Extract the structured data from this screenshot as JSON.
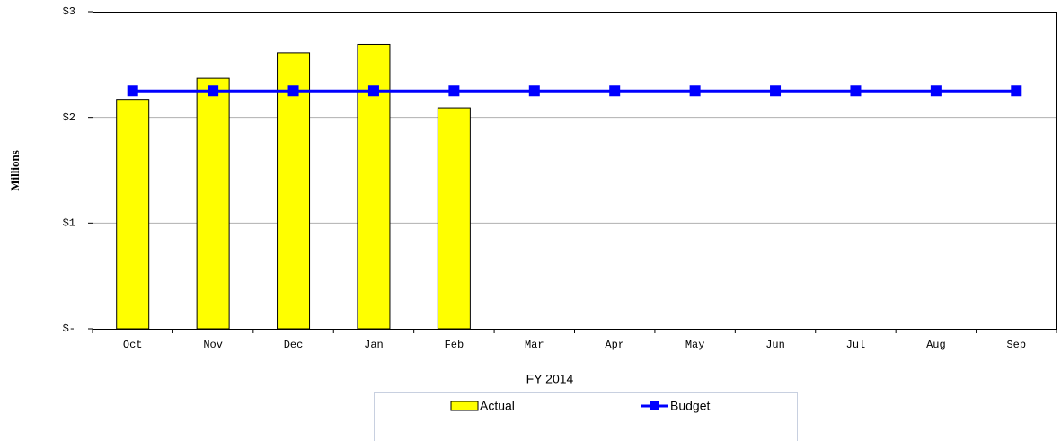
{
  "chart_data": {
    "type": "bar_line",
    "y_axis_label": "Millions",
    "x_axis_label": "FY 2014",
    "categories": [
      "Oct",
      "Nov",
      "Dec",
      "Jan",
      "Feb",
      "Mar",
      "Apr",
      "May",
      "Jun",
      "Jul",
      "Aug",
      "Sep"
    ],
    "series": [
      {
        "name": "Actual",
        "type": "bar",
        "color": "#ffff00",
        "values": [
          2.17,
          2.37,
          2.61,
          2.69,
          2.09,
          null,
          null,
          null,
          null,
          null,
          null,
          null
        ]
      },
      {
        "name": "Budget",
        "type": "line",
        "color": "#0000ff",
        "values": [
          2.25,
          2.25,
          2.25,
          2.25,
          2.25,
          2.25,
          2.25,
          2.25,
          2.25,
          2.25,
          2.25,
          2.25
        ]
      }
    ],
    "ylim": [
      0,
      3
    ],
    "yticks": [
      {
        "value": 0,
        "label": "$-"
      },
      {
        "value": 1,
        "label": "$1"
      },
      {
        "value": 2,
        "label": "$2"
      },
      {
        "value": 3,
        "label": "$3"
      }
    ],
    "grid": true
  }
}
